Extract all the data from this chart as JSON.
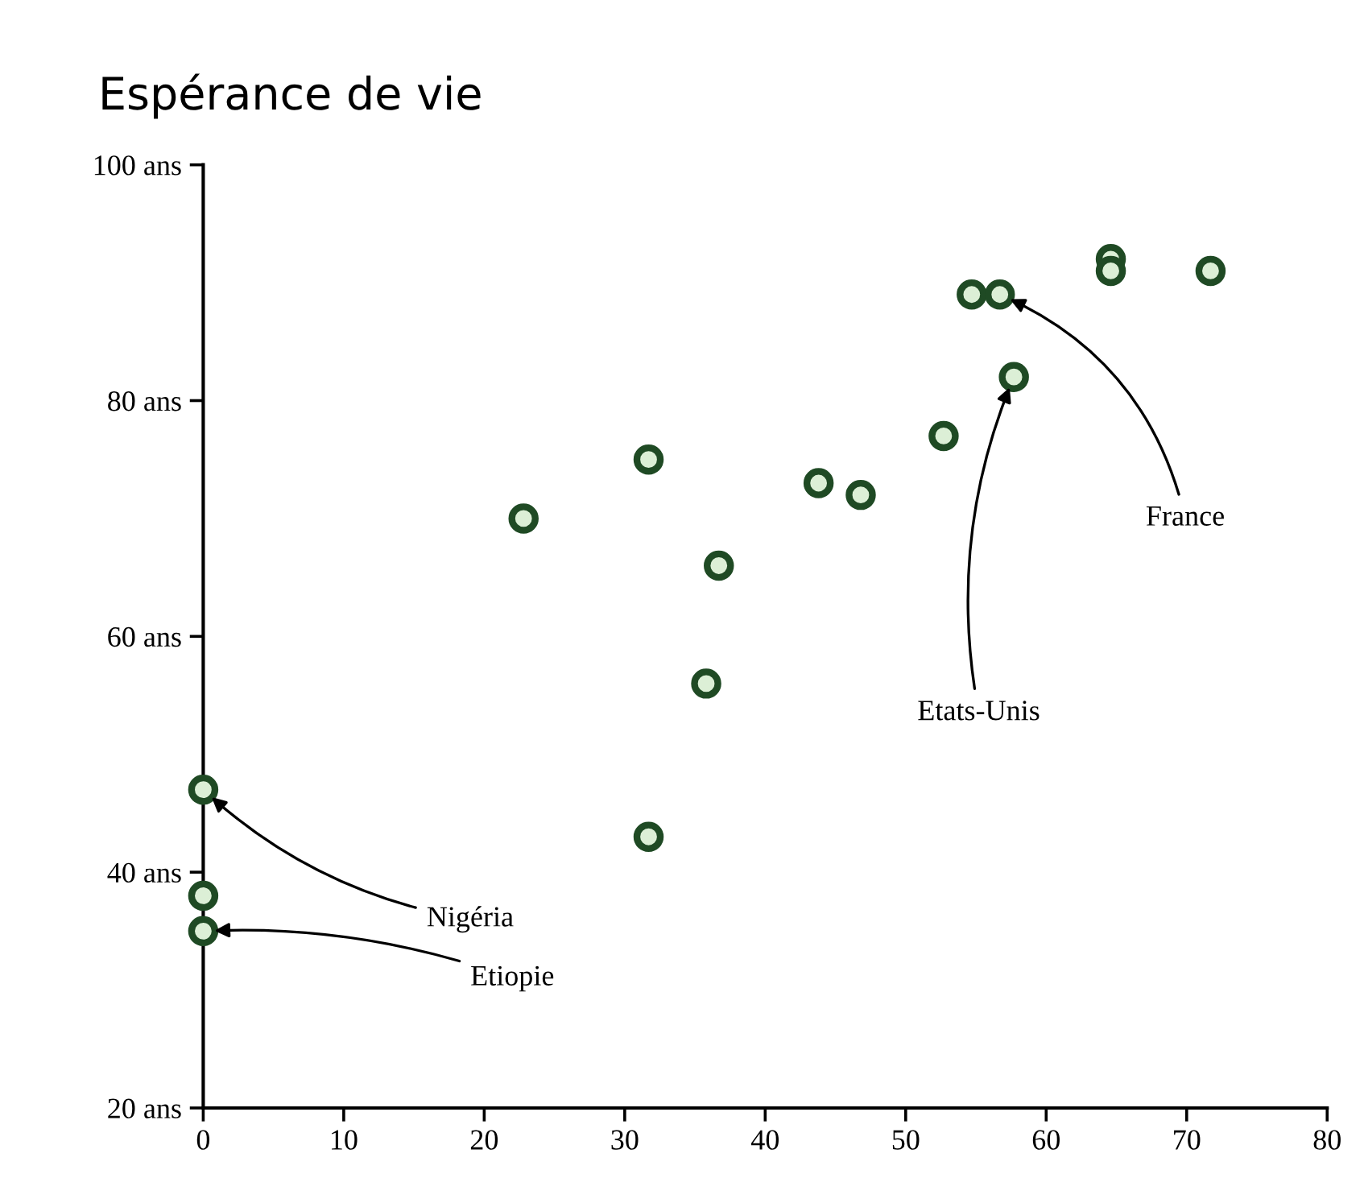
{
  "chart_data": {
    "type": "scatter",
    "title": "Espérance de vie",
    "x": [
      0,
      0,
      0,
      22.8,
      31.7,
      31.7,
      36.7,
      35.8,
      43.8,
      46.8,
      52.7,
      57.7,
      54.7,
      56.7,
      64.6,
      64.6,
      71.7
    ],
    "series": [
      {
        "color": "#1f4a24",
        "values": [
          47,
          38,
          35,
          70,
          75,
          43,
          66,
          56,
          73,
          72,
          77,
          82,
          89,
          89,
          92,
          91,
          91
        ]
      }
    ],
    "xlim": [
      0,
      80
    ],
    "xticks": [
      0,
      10,
      20,
      30,
      40,
      50,
      60,
      70,
      80
    ],
    "ylim": [
      20,
      100
    ],
    "yticks": [
      {
        "value": 20,
        "label": "20 ans"
      },
      {
        "value": 40,
        "label": "40 ans"
      },
      {
        "value": 60,
        "label": "60 ans"
      },
      {
        "value": 80,
        "label": "80 ans"
      },
      {
        "value": 100,
        "label": "100 ans"
      }
    ],
    "grid": false,
    "legend": false,
    "marker": "circle",
    "annotations": [
      {
        "text": "Nigéria",
        "x": 0,
        "y": 47
      },
      {
        "text": "Etiopie",
        "x": 0,
        "y": 35
      },
      {
        "text": "Etats-Unis",
        "x": 57.7,
        "y": 82
      },
      {
        "text": "France",
        "x": 56.7,
        "y": 89
      }
    ]
  }
}
